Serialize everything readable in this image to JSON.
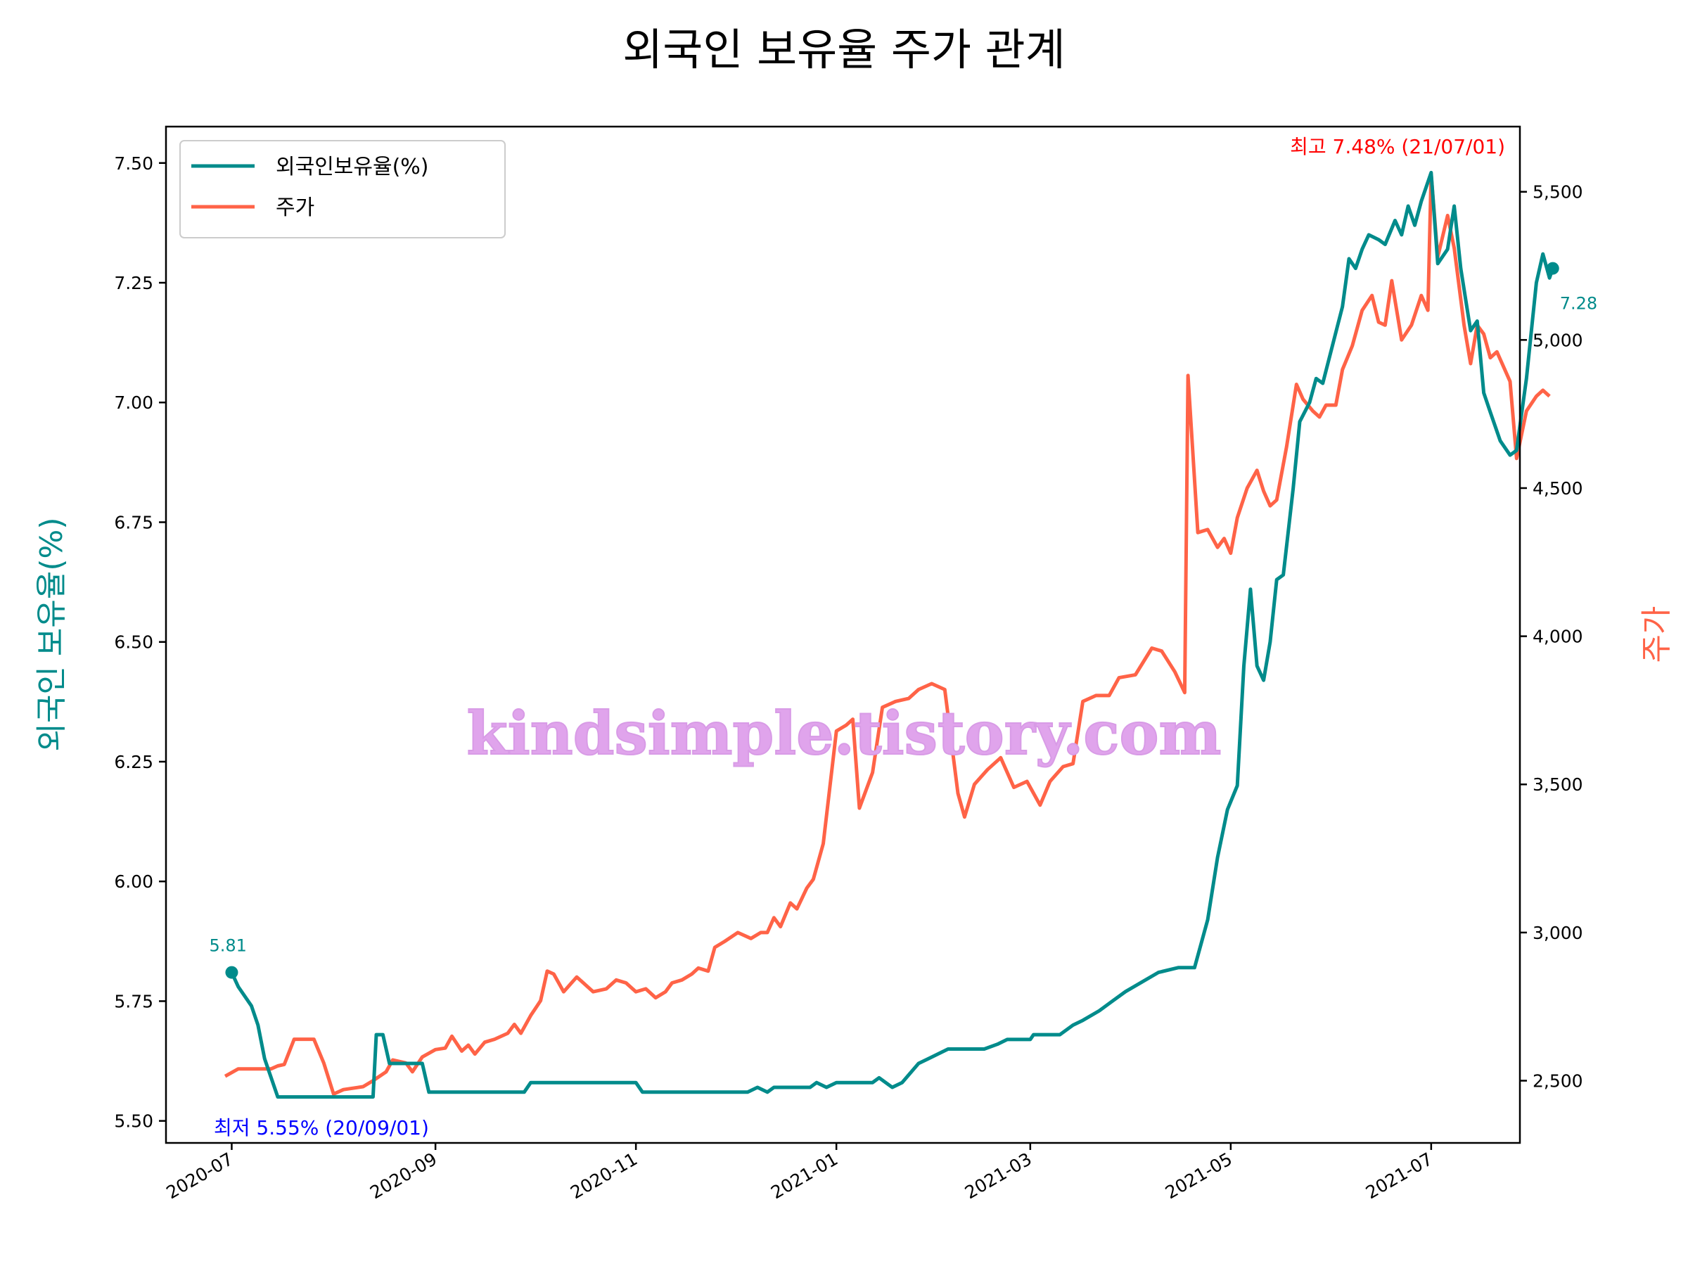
{
  "chart_data": {
    "type": "line",
    "title": "외국인 보유율 주가 관계",
    "xlabel": "",
    "x_ticks": [
      "2020-07",
      "2020-09",
      "2020-11",
      "2021-01",
      "2021-03",
      "2021-05",
      "2021-07"
    ],
    "y_left": {
      "label": "외국인 보유율(%)",
      "ticks": [
        "5.50",
        "5.75",
        "6.00",
        "6.25",
        "6.50",
        "6.75",
        "7.00",
        "7.25",
        "7.50"
      ],
      "range": [
        5.454,
        7.576
      ]
    },
    "y_right": {
      "label": "주가",
      "ticks": [
        "2,500",
        "3,000",
        "3,500",
        "4,000",
        "4,500",
        "5,000",
        "5,500"
      ],
      "range": [
        2290,
        5720
      ]
    },
    "x_range": [
      "2020-06-11",
      "2021-07-28"
    ],
    "legend": {
      "placement": "upper left",
      "entries": [
        "외국인보유율(%)",
        "주가"
      ]
    },
    "grid": false,
    "series": [
      {
        "name": "외국인보유율(%)",
        "axis": "left",
        "color": "#008b8b",
        "points": [
          [
            "2020-07-01",
            5.81
          ],
          [
            "2020-07-03",
            5.78
          ],
          [
            "2020-07-07",
            5.74
          ],
          [
            "2020-07-09",
            5.7
          ],
          [
            "2020-07-11",
            5.63
          ],
          [
            "2020-07-15",
            5.55
          ],
          [
            "2020-08-13",
            5.55
          ],
          [
            "2020-08-14",
            5.68
          ],
          [
            "2020-08-16",
            5.68
          ],
          [
            "2020-08-18",
            5.62
          ],
          [
            "2020-08-28",
            5.62
          ],
          [
            "2020-08-30",
            5.56
          ],
          [
            "2020-09-28",
            5.56
          ],
          [
            "2020-09-30",
            5.58
          ],
          [
            "2020-11-01",
            5.58
          ],
          [
            "2020-11-03",
            5.56
          ],
          [
            "2020-12-05",
            5.56
          ],
          [
            "2020-12-08",
            5.57
          ],
          [
            "2020-12-11",
            5.56
          ],
          [
            "2020-12-13",
            5.57
          ],
          [
            "2020-12-24",
            5.57
          ],
          [
            "2020-12-26",
            5.58
          ],
          [
            "2020-12-29",
            5.57
          ],
          [
            "2021-01-01",
            5.58
          ],
          [
            "2021-01-12",
            5.58
          ],
          [
            "2021-01-14",
            5.59
          ],
          [
            "2021-01-18",
            5.57
          ],
          [
            "2021-01-21",
            5.58
          ],
          [
            "2021-01-26",
            5.62
          ],
          [
            "2021-01-29",
            5.63
          ],
          [
            "2021-02-04",
            5.65
          ],
          [
            "2021-02-15",
            5.65
          ],
          [
            "2021-02-19",
            5.66
          ],
          [
            "2021-02-22",
            5.67
          ],
          [
            "2021-03-01",
            5.67
          ],
          [
            "2021-03-02",
            5.68
          ],
          [
            "2021-03-10",
            5.68
          ],
          [
            "2021-03-14",
            5.7
          ],
          [
            "2021-03-17",
            5.71
          ],
          [
            "2021-03-22",
            5.73
          ],
          [
            "2021-03-26",
            5.75
          ],
          [
            "2021-03-30",
            5.77
          ],
          [
            "2021-04-04",
            5.79
          ],
          [
            "2021-04-09",
            5.81
          ],
          [
            "2021-04-15",
            5.82
          ],
          [
            "2021-04-20",
            5.82
          ],
          [
            "2021-04-24",
            5.92
          ],
          [
            "2021-04-27",
            6.05
          ],
          [
            "2021-04-30",
            6.15
          ],
          [
            "2021-05-03",
            6.2
          ],
          [
            "2021-05-05",
            6.45
          ],
          [
            "2021-05-07",
            6.61
          ],
          [
            "2021-05-09",
            6.45
          ],
          [
            "2021-05-11",
            6.42
          ],
          [
            "2021-05-13",
            6.5
          ],
          [
            "2021-05-15",
            6.63
          ],
          [
            "2021-05-17",
            6.64
          ],
          [
            "2021-05-20",
            6.82
          ],
          [
            "2021-05-22",
            6.96
          ],
          [
            "2021-05-25",
            7.0
          ],
          [
            "2021-05-27",
            7.05
          ],
          [
            "2021-05-29",
            7.04
          ],
          [
            "2021-06-01",
            7.12
          ],
          [
            "2021-06-04",
            7.2
          ],
          [
            "2021-06-06",
            7.3
          ],
          [
            "2021-06-08",
            7.28
          ],
          [
            "2021-06-10",
            7.32
          ],
          [
            "2021-06-12",
            7.35
          ],
          [
            "2021-06-15",
            7.34
          ],
          [
            "2021-06-17",
            7.33
          ],
          [
            "2021-06-20",
            7.38
          ],
          [
            "2021-06-22",
            7.35
          ],
          [
            "2021-06-24",
            7.41
          ],
          [
            "2021-06-26",
            7.37
          ],
          [
            "2021-06-28",
            7.42
          ],
          [
            "2021-07-01",
            7.48
          ],
          [
            "2021-07-03",
            7.29
          ],
          [
            "2021-07-06",
            7.32
          ],
          [
            "2021-07-08",
            7.41
          ],
          [
            "2021-07-10",
            7.28
          ],
          [
            "2021-07-13",
            7.15
          ],
          [
            "2021-07-15",
            7.17
          ],
          [
            "2021-07-17",
            7.02
          ],
          [
            "2021-07-19",
            6.98
          ],
          [
            "2021-07-22",
            6.92
          ],
          [
            "2021-07-25",
            6.89
          ],
          [
            "2021-07-27",
            6.9
          ],
          [
            "2021-07-30",
            7.05
          ],
          [
            "2021-08-02",
            7.25
          ],
          [
            "2021-08-04",
            7.31
          ],
          [
            "2021-08-06",
            7.26
          ],
          [
            "2021-08-07",
            7.28
          ]
        ]
      },
      {
        "name": "주가",
        "axis": "right",
        "color": "#ff6347",
        "points": [
          [
            "2020-06-29",
            2515
          ],
          [
            "2020-07-03",
            2540
          ],
          [
            "2020-07-13",
            2540
          ],
          [
            "2020-07-15",
            2550
          ],
          [
            "2020-07-17",
            2555
          ],
          [
            "2020-07-20",
            2640
          ],
          [
            "2020-07-26",
            2640
          ],
          [
            "2020-07-29",
            2560
          ],
          [
            "2020-08-01",
            2455
          ],
          [
            "2020-08-04",
            2470
          ],
          [
            "2020-08-10",
            2480
          ],
          [
            "2020-08-13",
            2500
          ],
          [
            "2020-08-17",
            2530
          ],
          [
            "2020-08-19",
            2570
          ],
          [
            "2020-08-23",
            2560
          ],
          [
            "2020-08-25",
            2530
          ],
          [
            "2020-08-28",
            2580
          ],
          [
            "2020-09-01",
            2605
          ],
          [
            "2020-09-04",
            2610
          ],
          [
            "2020-09-06",
            2650
          ],
          [
            "2020-09-09",
            2600
          ],
          [
            "2020-09-11",
            2620
          ],
          [
            "2020-09-13",
            2590
          ],
          [
            "2020-09-16",
            2630
          ],
          [
            "2020-09-19",
            2640
          ],
          [
            "2020-09-23",
            2660
          ],
          [
            "2020-09-25",
            2690
          ],
          [
            "2020-09-27",
            2660
          ],
          [
            "2020-09-30",
            2720
          ],
          [
            "2020-10-03",
            2770
          ],
          [
            "2020-10-05",
            2870
          ],
          [
            "2020-10-07",
            2860
          ],
          [
            "2020-10-10",
            2800
          ],
          [
            "2020-10-14",
            2850
          ],
          [
            "2020-10-16",
            2830
          ],
          [
            "2020-10-19",
            2800
          ],
          [
            "2020-10-23",
            2810
          ],
          [
            "2020-10-26",
            2840
          ],
          [
            "2020-10-29",
            2830
          ],
          [
            "2020-11-01",
            2800
          ],
          [
            "2020-11-04",
            2810
          ],
          [
            "2020-11-07",
            2780
          ],
          [
            "2020-11-10",
            2800
          ],
          [
            "2020-11-12",
            2830
          ],
          [
            "2020-11-15",
            2840
          ],
          [
            "2020-11-18",
            2860
          ],
          [
            "2020-11-20",
            2880
          ],
          [
            "2020-11-23",
            2870
          ],
          [
            "2020-11-25",
            2950
          ],
          [
            "2020-11-28",
            2970
          ],
          [
            "2020-12-02",
            3000
          ],
          [
            "2020-12-06",
            2980
          ],
          [
            "2020-12-09",
            3000
          ],
          [
            "2020-12-11",
            3000
          ],
          [
            "2020-12-13",
            3050
          ],
          [
            "2020-12-15",
            3020
          ],
          [
            "2020-12-18",
            3100
          ],
          [
            "2020-12-20",
            3080
          ],
          [
            "2020-12-23",
            3150
          ],
          [
            "2020-12-25",
            3180
          ],
          [
            "2020-12-28",
            3300
          ],
          [
            "2021-01-01",
            3680
          ],
          [
            "2021-01-04",
            3700
          ],
          [
            "2021-01-06",
            3720
          ],
          [
            "2021-01-08",
            3420
          ],
          [
            "2021-01-12",
            3540
          ],
          [
            "2021-01-15",
            3760
          ],
          [
            "2021-01-19",
            3780
          ],
          [
            "2021-01-23",
            3790
          ],
          [
            "2021-01-26",
            3820
          ],
          [
            "2021-01-30",
            3840
          ],
          [
            "2021-02-03",
            3820
          ],
          [
            "2021-02-07",
            3470
          ],
          [
            "2021-02-09",
            3390
          ],
          [
            "2021-02-12",
            3500
          ],
          [
            "2021-02-16",
            3550
          ],
          [
            "2021-02-20",
            3590
          ],
          [
            "2021-02-24",
            3490
          ],
          [
            "2021-02-28",
            3510
          ],
          [
            "2021-03-04",
            3430
          ],
          [
            "2021-03-07",
            3510
          ],
          [
            "2021-03-11",
            3560
          ],
          [
            "2021-03-14",
            3570
          ],
          [
            "2021-03-17",
            3780
          ],
          [
            "2021-03-21",
            3800
          ],
          [
            "2021-03-25",
            3800
          ],
          [
            "2021-03-28",
            3860
          ],
          [
            "2021-04-02",
            3870
          ],
          [
            "2021-04-07",
            3960
          ],
          [
            "2021-04-10",
            3950
          ],
          [
            "2021-04-14",
            3880
          ],
          [
            "2021-04-17",
            3810
          ],
          [
            "2021-04-18",
            4880
          ],
          [
            "2021-04-21",
            4350
          ],
          [
            "2021-04-24",
            4360
          ],
          [
            "2021-04-27",
            4300
          ],
          [
            "2021-04-29",
            4330
          ],
          [
            "2021-05-01",
            4280
          ],
          [
            "2021-05-03",
            4400
          ],
          [
            "2021-05-06",
            4500
          ],
          [
            "2021-05-09",
            4560
          ],
          [
            "2021-05-11",
            4490
          ],
          [
            "2021-05-13",
            4440
          ],
          [
            "2021-05-15",
            4460
          ],
          [
            "2021-05-18",
            4640
          ],
          [
            "2021-05-21",
            4850
          ],
          [
            "2021-05-23",
            4800
          ],
          [
            "2021-05-26",
            4760
          ],
          [
            "2021-05-28",
            4740
          ],
          [
            "2021-05-30",
            4780
          ],
          [
            "2021-06-02",
            4780
          ],
          [
            "2021-06-04",
            4900
          ],
          [
            "2021-06-07",
            4980
          ],
          [
            "2021-06-10",
            5100
          ],
          [
            "2021-06-13",
            5150
          ],
          [
            "2021-06-15",
            5060
          ],
          [
            "2021-06-17",
            5050
          ],
          [
            "2021-06-19",
            5200
          ],
          [
            "2021-06-22",
            5000
          ],
          [
            "2021-06-25",
            5050
          ],
          [
            "2021-06-28",
            5150
          ],
          [
            "2021-06-30",
            5100
          ],
          [
            "2021-07-01",
            5560
          ],
          [
            "2021-07-03",
            5280
          ],
          [
            "2021-07-06",
            5420
          ],
          [
            "2021-07-08",
            5310
          ],
          [
            "2021-07-11",
            5050
          ],
          [
            "2021-07-13",
            4920
          ],
          [
            "2021-07-15",
            5050
          ],
          [
            "2021-07-17",
            5020
          ],
          [
            "2021-07-19",
            4940
          ],
          [
            "2021-07-21",
            4960
          ],
          [
            "2021-07-25",
            4860
          ],
          [
            "2021-07-27",
            4600
          ],
          [
            "2021-07-30",
            4760
          ],
          [
            "2021-08-02",
            4810
          ],
          [
            "2021-08-04",
            4830
          ],
          [
            "2021-08-06",
            4810
          ]
        ]
      }
    ],
    "annotations": {
      "max": {
        "label": "최고 7.48% (21/07/01)",
        "color": "#ff0000"
      },
      "min": {
        "label": "최저 5.55% (20/09/01)",
        "color": "#0000ff"
      },
      "first": {
        "label": "5.81",
        "date": "2020-07-01",
        "value": 5.81,
        "color": "#008b8b"
      },
      "last": {
        "label": "7.28",
        "date": "2021-08-07",
        "value": 7.28,
        "color": "#008b8b"
      }
    },
    "watermark": {
      "text": "kindsimple.tistory.com",
      "color": "#e0a4ec"
    }
  }
}
